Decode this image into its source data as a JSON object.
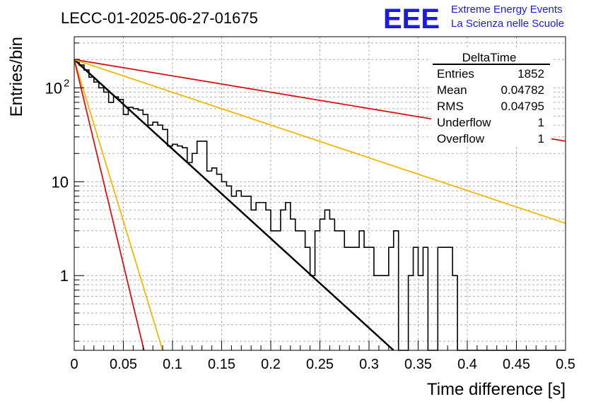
{
  "header": {
    "run_title": "LECC-01-2025-06-27-01675",
    "logo_text": "EEE",
    "logo_line1": "Extreme Energy Events",
    "logo_line2": "La Scienza nelle Scuole",
    "brand_color": "#1a1ae6"
  },
  "stats": {
    "title": "DeltaTime",
    "rows": [
      {
        "label": "Entries",
        "value": "1852"
      },
      {
        "label": "Mean",
        "value": "0.04782"
      },
      {
        "label": "RMS",
        "value": "0.04795"
      },
      {
        "label": "Underflow",
        "value": "1"
      },
      {
        "label": "Overflow",
        "value": "1"
      }
    ]
  },
  "chart_data": {
    "type": "bar",
    "style": "step-histogram",
    "title": "LECC-01-2025-06-27-01675",
    "xlabel": "Time difference [s]",
    "ylabel": "Entries/bin",
    "xlim": [
      0,
      0.5
    ],
    "ylim": [
      0.16,
      350
    ],
    "yscale": "log",
    "grid": true,
    "xticks": [
      "0",
      "0.05",
      "0.1",
      "0.15",
      "0.2",
      "0.25",
      "0.3",
      "0.35",
      "0.4",
      "0.45",
      "0.5"
    ],
    "yticks": [
      {
        "value": 1,
        "label": "1"
      },
      {
        "value": 10,
        "label": "10"
      },
      {
        "value": 100,
        "label": "10",
        "exp": "2"
      }
    ],
    "bin_width": 0.005,
    "values": [
      200,
      175,
      155,
      130,
      115,
      100,
      90,
      70,
      80,
      75,
      52,
      62,
      60,
      58,
      52,
      40,
      43,
      40,
      36,
      24,
      25,
      24,
      23,
      16,
      20,
      27,
      27,
      13,
      14,
      12,
      10,
      9,
      7,
      8,
      7,
      7,
      5,
      6,
      6,
      5,
      3,
      3,
      5,
      6,
      4,
      3,
      3,
      2,
      1,
      3,
      4,
      5,
      4,
      3,
      3,
      2,
      2,
      2,
      3,
      2,
      2,
      1,
      1,
      1,
      2,
      3,
      0,
      0,
      1,
      2,
      1,
      2,
      0,
      0,
      2,
      2,
      2,
      1,
      0,
      0,
      0,
      0,
      0,
      0,
      0,
      0,
      0,
      0,
      0,
      0,
      0,
      0,
      0,
      0,
      0,
      0,
      0,
      0,
      0,
      0
    ],
    "lines": [
      {
        "color": "#000000",
        "points": [
          [
            0,
            200
          ],
          [
            0.325,
            0.16
          ]
        ]
      },
      {
        "color": "#dd1111",
        "points": [
          [
            0,
            200
          ],
          [
            0.5,
            27
          ]
        ]
      },
      {
        "color": "#f5b800",
        "points": [
          [
            0,
            200
          ],
          [
            0.5,
            3.6
          ]
        ]
      },
      {
        "color": "#f5b800",
        "points": [
          [
            0,
            200
          ],
          [
            0.09,
            0.16
          ]
        ]
      },
      {
        "color": "#dd1111",
        "points": [
          [
            0,
            200
          ],
          [
            0.071,
            0.16
          ]
        ]
      }
    ]
  }
}
